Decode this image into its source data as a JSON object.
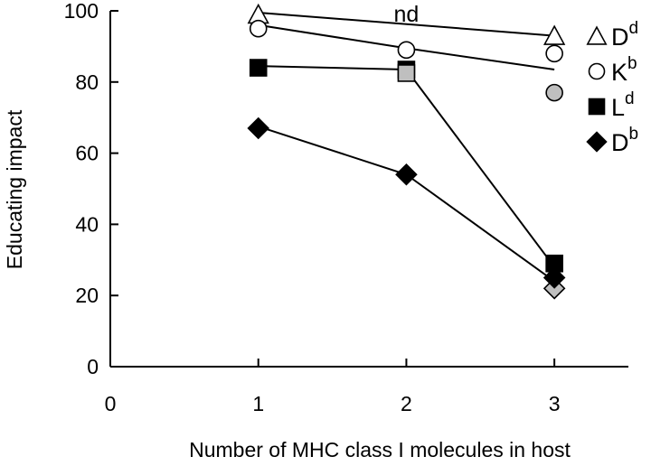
{
  "chart_data": {
    "type": "line",
    "title": "",
    "xlabel": "Number of MHC class I molecules in host",
    "ylabel": "Educating impact",
    "xlim": [
      0,
      3.5
    ],
    "ylim": [
      0,
      100
    ],
    "xticks": [
      "0",
      "1",
      "2",
      "3"
    ],
    "yticks": [
      "0",
      "20",
      "40",
      "60",
      "80",
      "100"
    ],
    "grid": false,
    "legend_position": "right",
    "series": [
      {
        "name": "Dd",
        "base": "D",
        "sup": "d",
        "marker": "triangle",
        "color": "#ffffff",
        "line": [
          [
            1,
            99.5
          ],
          [
            3,
            93
          ]
        ],
        "points": [
          {
            "x": 1,
            "y": 99,
            "fill": "#ffffff"
          },
          {
            "x": 3,
            "y": 93,
            "fill": "#ffffff"
          }
        ]
      },
      {
        "name": "Kb",
        "base": "K",
        "sup": "b",
        "marker": "circle",
        "color": "#ffffff",
        "line": [
          [
            1,
            96
          ],
          [
            2,
            89.5
          ],
          [
            3,
            83.5
          ]
        ],
        "points": [
          {
            "x": 1,
            "y": 95,
            "fill": "#ffffff"
          },
          {
            "x": 2,
            "y": 89,
            "fill": "#ffffff"
          },
          {
            "x": 3,
            "y": 88,
            "fill": "#ffffff"
          },
          {
            "x": 3,
            "y": 77,
            "fill": "#bfbfbf"
          }
        ]
      },
      {
        "name": "Ld",
        "base": "L",
        "sup": "d",
        "marker": "square",
        "color": "#000000",
        "line": [
          [
            1,
            84.5
          ],
          [
            2,
            83.5
          ],
          [
            3,
            28
          ]
        ],
        "points": [
          {
            "x": 1,
            "y": 84,
            "fill": "#000000"
          },
          {
            "x": 2,
            "y": 83.5,
            "fill": "#000000"
          },
          {
            "x": 2,
            "y": 82.5,
            "fill": "#bfbfbf"
          },
          {
            "x": 3,
            "y": 29,
            "fill": "#000000"
          }
        ]
      },
      {
        "name": "Db",
        "base": "D",
        "sup": "b",
        "marker": "diamond",
        "color": "#000000",
        "line": [
          [
            1,
            67.5
          ],
          [
            2,
            54
          ],
          [
            3,
            24
          ]
        ],
        "points": [
          {
            "x": 1,
            "y": 67,
            "fill": "#000000"
          },
          {
            "x": 2,
            "y": 54,
            "fill": "#000000"
          },
          {
            "x": 3,
            "y": 22,
            "fill": "#bfbfbf"
          },
          {
            "x": 3,
            "y": 25,
            "fill": "#000000"
          }
        ]
      }
    ],
    "annotations": [
      {
        "text": "nd",
        "x": 2,
        "y": 99
      }
    ]
  }
}
